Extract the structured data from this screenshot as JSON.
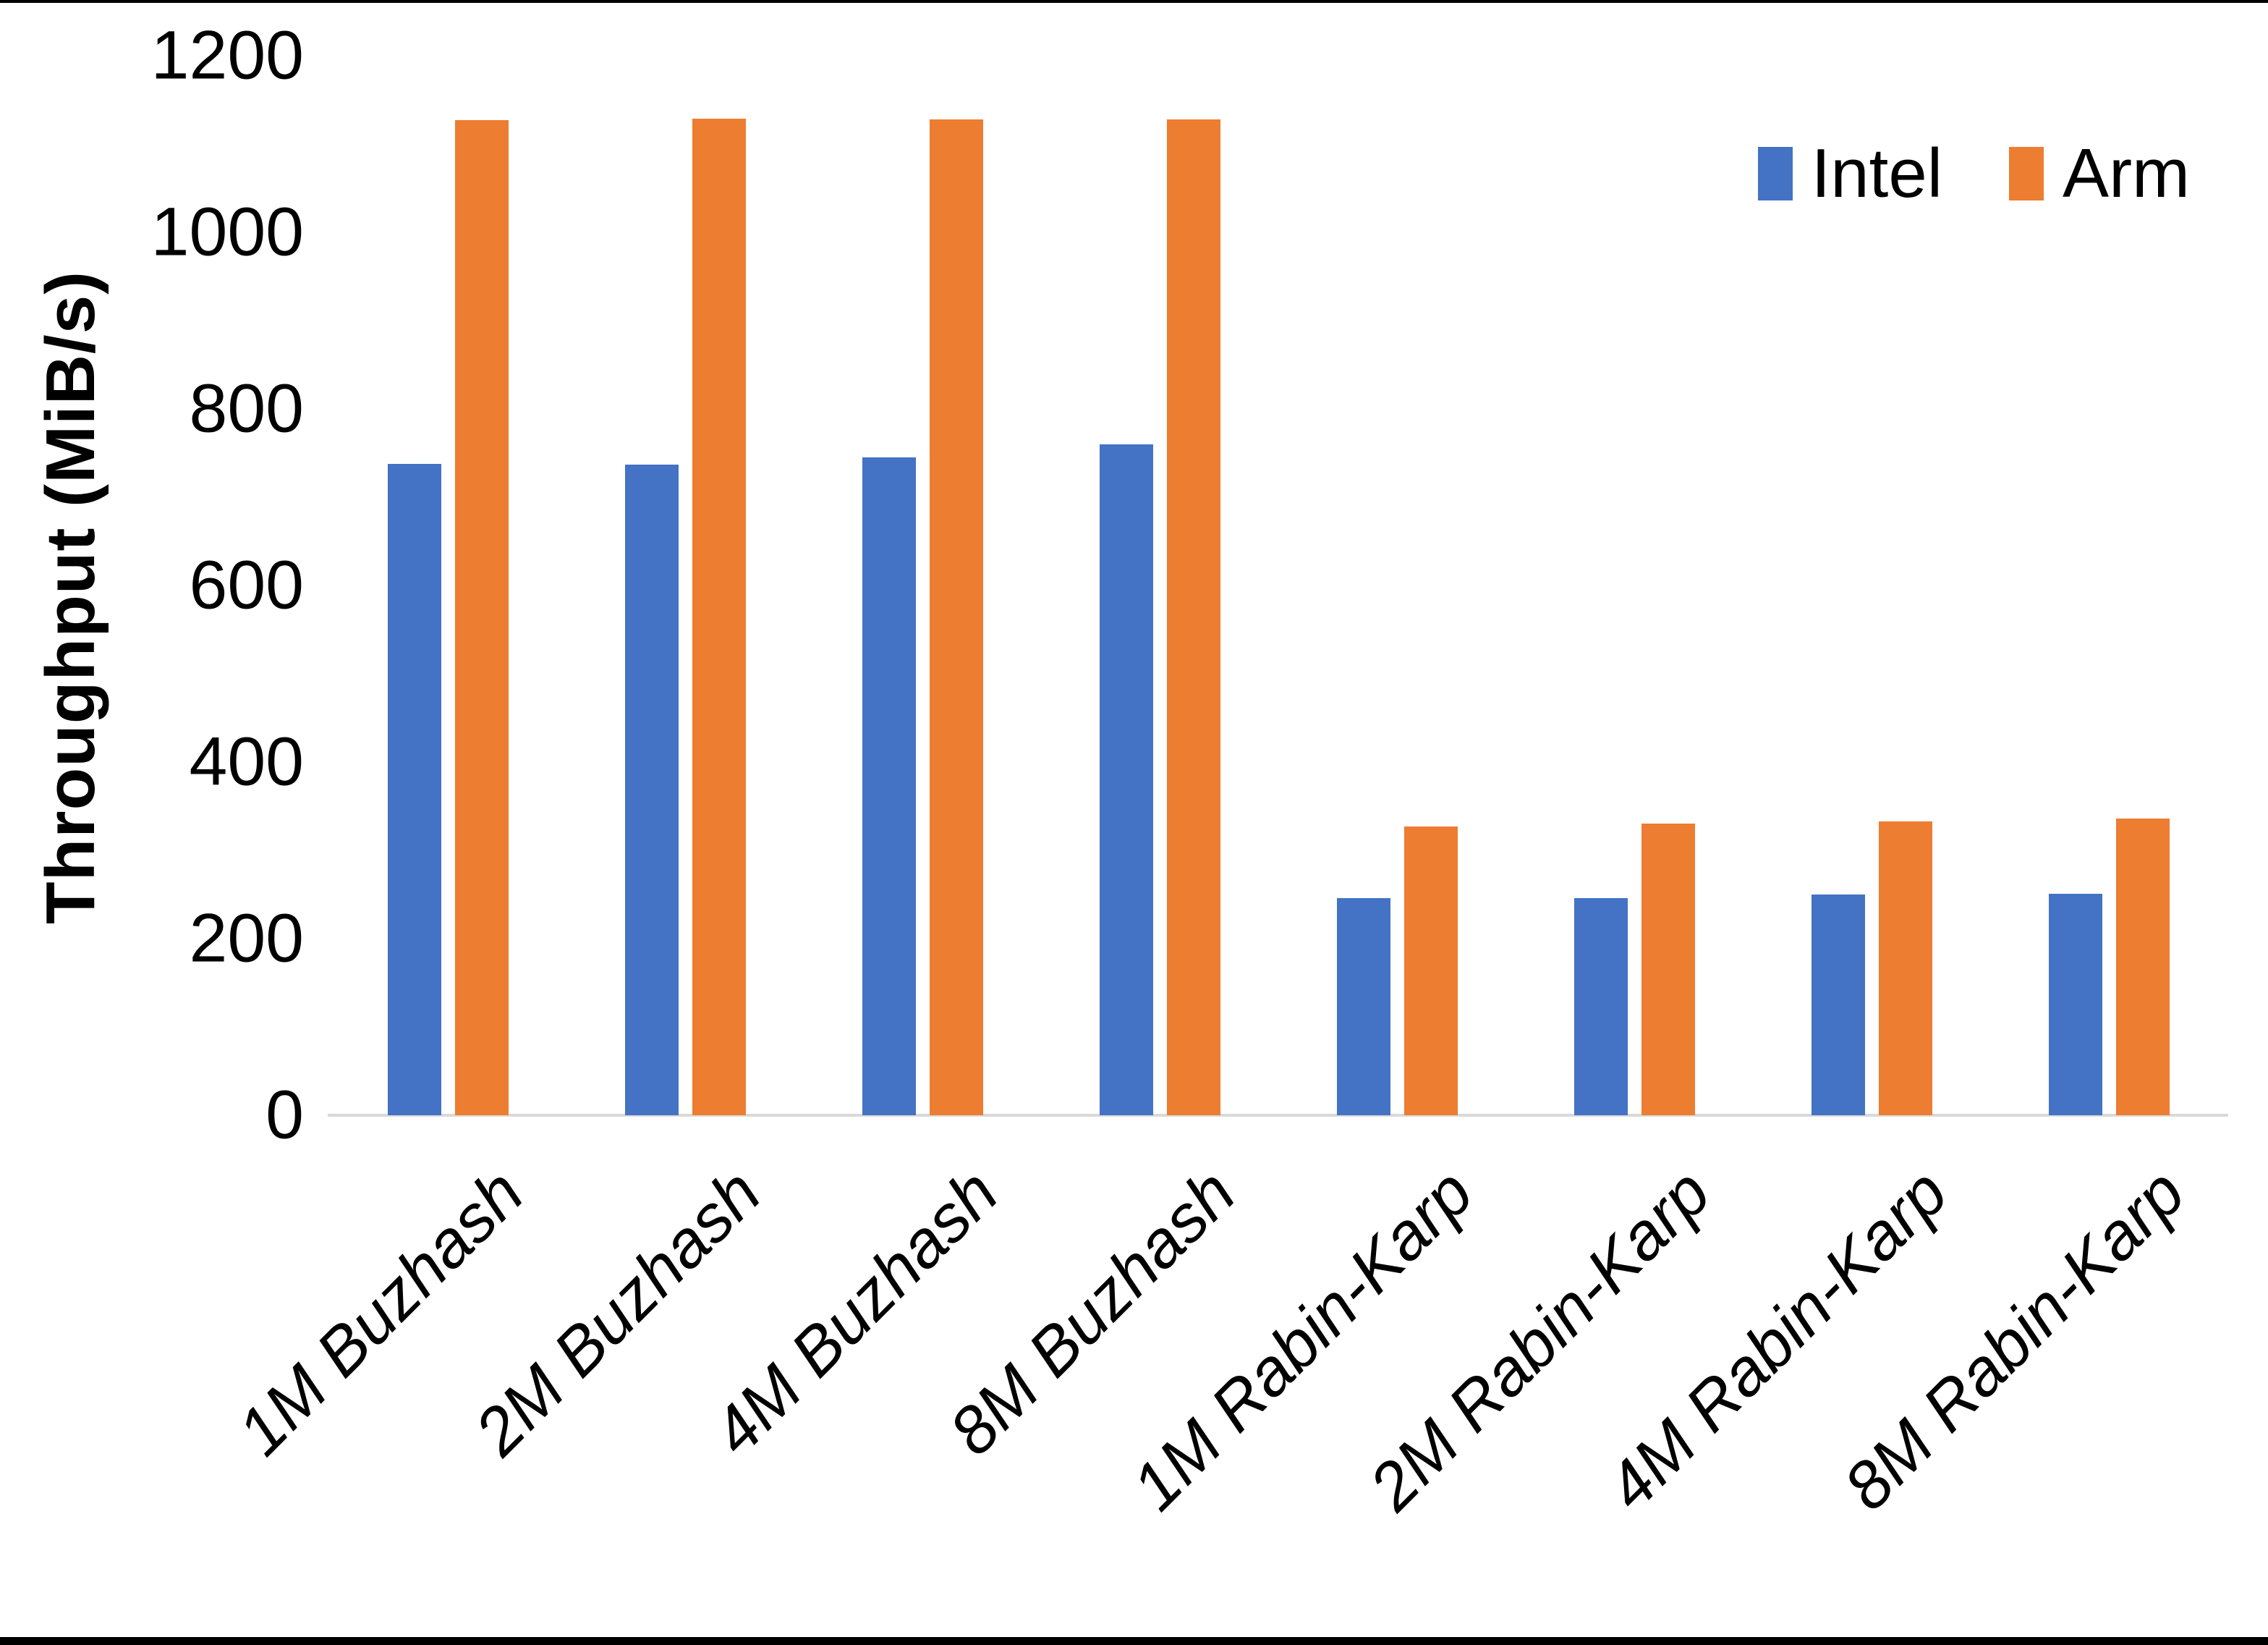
{
  "chart_data": {
    "type": "bar",
    "title": "",
    "ylabel": "Throughput (MiB/s)",
    "xlabel": "",
    "ylim": [
      0,
      1200
    ],
    "yticks": [
      0,
      200,
      400,
      600,
      800,
      1000,
      1200
    ],
    "grid": false,
    "legend_position": "top-right",
    "categories": [
      "1M Buzhash",
      "2M Buzhash",
      "4M Buzhash",
      "8M Buzhash",
      "1M Rabin-Karp",
      "2M Rabin-Karp",
      "4M Rabin-Karp",
      "8M Rabin-Karp"
    ],
    "series": [
      {
        "name": "Intel",
        "color": "#4472C4",
        "values": [
          738,
          737,
          745,
          760,
          246,
          246,
          250,
          251
        ]
      },
      {
        "name": "Arm",
        "color": "#ED7D31",
        "values": [
          1127,
          1129,
          1128,
          1128,
          327,
          330,
          333,
          336
        ]
      }
    ]
  },
  "legend": {
    "items": [
      {
        "label": "Intel",
        "color": "#4472C4"
      },
      {
        "label": "Arm",
        "color": "#ED7D31"
      }
    ]
  },
  "colors": {
    "background": "#FFFFFF",
    "axis_line": "#D9D9D9",
    "text": "#000000",
    "frame_border": "#000000",
    "intel_blue": "#4472C4",
    "arm_orange": "#ED7D31"
  }
}
